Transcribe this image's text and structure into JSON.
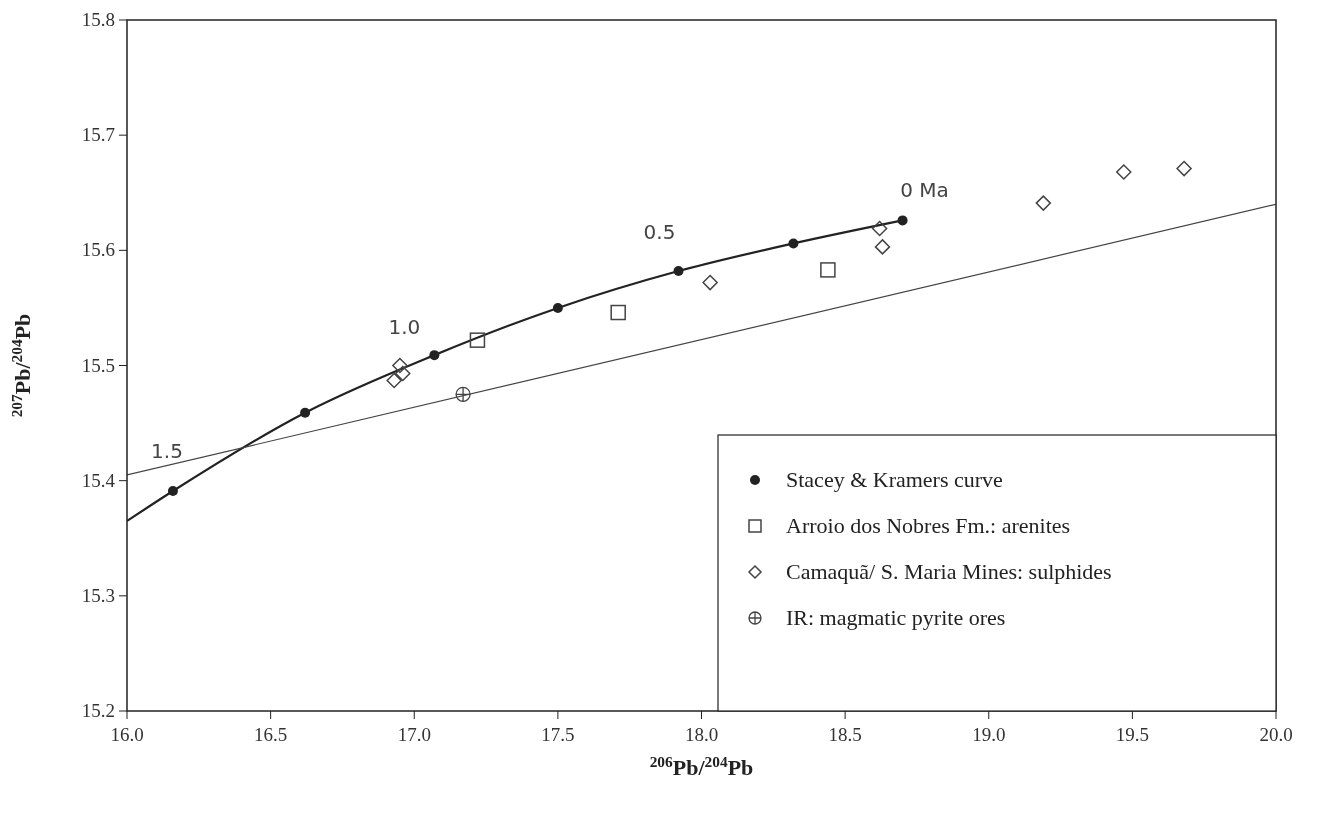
{
  "chart_data": {
    "type": "scatter",
    "xlabel": "$^{206}$Pb/$^{204}$Pb",
    "ylabel": "$^{207}$Pb/$^{204}$Pb",
    "xlim": [
      16.0,
      20.0
    ],
    "xticks": [
      {
        "value": 16.0,
        "label": "16.0"
      },
      {
        "value": 16.5,
        "label": "16.5"
      },
      {
        "value": 17.0,
        "label": "17.0"
      },
      {
        "value": 17.5,
        "label": "17.5"
      },
      {
        "value": 18.0,
        "label": "18.0"
      },
      {
        "value": 18.5,
        "label": "18.5"
      },
      {
        "value": 19.0,
        "label": "19.0"
      },
      {
        "value": 19.5,
        "label": "19.5"
      },
      {
        "value": 20.0,
        "label": "20.0"
      }
    ],
    "ylim": [
      15.2,
      15.8
    ],
    "yticks": [
      15.2,
      15.3,
      15.4,
      15.5,
      15.6,
      15.7,
      15.8
    ],
    "grid": false,
    "legend": "bottom right",
    "series": [
      {
        "type": "line",
        "marker": "none",
        "color": "#222222",
        "x": [
          16.0,
          16.16,
          16.62,
          17.07,
          17.5,
          17.92,
          18.32,
          18.7
        ],
        "values": [
          15.365,
          15.391,
          15.459,
          15.509,
          15.55,
          15.582,
          15.606,
          15.626
        ]
      },
      {
        "type": "line",
        "marker": "none",
        "color": "#444444",
        "x": [
          16.0,
          20.0
        ],
        "values": [
          15.405,
          15.64
        ]
      },
      {
        "name": "Stacey & Kramers curve",
        "marker": "circle",
        "color": "#222222",
        "x": [
          16.16,
          16.62,
          17.07,
          17.5,
          17.92,
          18.32,
          18.7
        ],
        "values": [
          15.391,
          15.459,
          15.509,
          15.55,
          15.582,
          15.606,
          15.626
        ]
      },
      {
        "name": "Arroio dos Nobres Fm.: arenites",
        "marker": "square",
        "color": "#444444",
        "x": [
          17.22,
          17.71,
          18.44
        ],
        "values": [
          15.522,
          15.546,
          15.583
        ]
      },
      {
        "name": "Camaquã/ S. Maria Mines: sulphides",
        "marker": "diamond",
        "color": "#444444",
        "x": [
          16.93,
          16.95,
          16.96,
          18.03,
          18.62,
          18.63,
          19.19,
          19.47,
          19.68
        ],
        "values": [
          15.487,
          15.5,
          15.493,
          15.572,
          15.619,
          15.603,
          15.641,
          15.668,
          15.671
        ]
      },
      {
        "name": "IR: magmatic pyrite ores",
        "marker": "cross",
        "color": "#444444",
        "x": [
          17.17
        ],
        "values": [
          15.475
        ]
      }
    ],
    "annotations": [
      {
        "text": "1.5",
        "x": 16.16,
        "y": 15.391
      },
      {
        "text": "1.0",
        "x": 17.07,
        "y": 15.509
      },
      {
        "text": "0.5",
        "x": 17.92,
        "y": 15.582
      },
      {
        "text": "0 Ma",
        "x": 18.7,
        "y": 15.626
      }
    ]
  }
}
